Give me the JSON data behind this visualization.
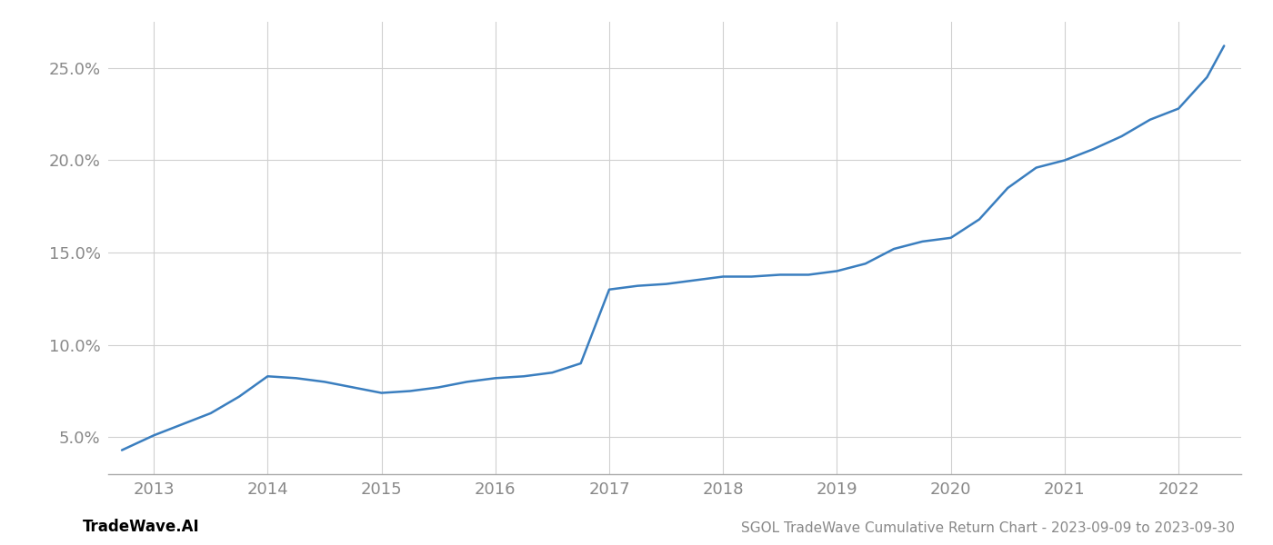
{
  "x_years": [
    2012.72,
    2013.0,
    2013.25,
    2013.5,
    2013.75,
    2014.0,
    2014.25,
    2014.5,
    2014.75,
    2015.0,
    2015.25,
    2015.5,
    2015.75,
    2016.0,
    2016.25,
    2016.5,
    2016.75,
    2017.0,
    2017.25,
    2017.5,
    2017.75,
    2018.0,
    2018.25,
    2018.5,
    2018.75,
    2019.0,
    2019.25,
    2019.5,
    2019.75,
    2020.0,
    2020.25,
    2020.5,
    2020.75,
    2021.0,
    2021.25,
    2021.5,
    2021.75,
    2022.0,
    2022.25,
    2022.4
  ],
  "y_values": [
    0.043,
    0.051,
    0.057,
    0.063,
    0.072,
    0.083,
    0.082,
    0.08,
    0.077,
    0.074,
    0.075,
    0.077,
    0.08,
    0.082,
    0.083,
    0.085,
    0.09,
    0.13,
    0.132,
    0.133,
    0.135,
    0.137,
    0.137,
    0.138,
    0.138,
    0.14,
    0.144,
    0.152,
    0.156,
    0.158,
    0.168,
    0.185,
    0.196,
    0.2,
    0.206,
    0.213,
    0.222,
    0.228,
    0.245,
    0.262
  ],
  "line_color": "#3a7ebf",
  "background_color": "#ffffff",
  "grid_color": "#d0d0d0",
  "tick_color": "#888888",
  "footer_left": "TradeWave.AI",
  "footer_right": "SGOL TradeWave Cumulative Return Chart - 2023-09-09 to 2023-09-30",
  "footer_color": "#888888",
  "footer_left_color": "#000000",
  "xlim": [
    2012.6,
    2022.55
  ],
  "ylim": [
    0.03,
    0.275
  ],
  "yticks": [
    0.05,
    0.1,
    0.15,
    0.2,
    0.25
  ],
  "xticks": [
    2013,
    2014,
    2015,
    2016,
    2017,
    2018,
    2019,
    2020,
    2021,
    2022
  ],
  "line_width": 1.8
}
